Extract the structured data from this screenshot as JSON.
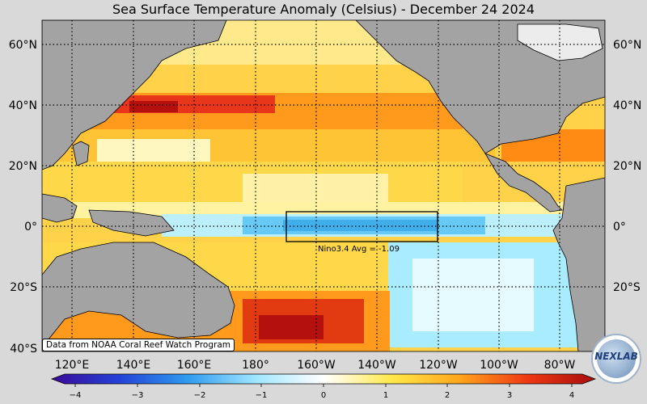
{
  "title": "Sea Surface Temperature Anomaly (Celsius) - December 24 2024",
  "credit": "Data from NOAA Coral Reef Watch Program",
  "logo": {
    "text": "NEXLAB"
  },
  "lat_labels": [
    "60°N",
    "40°N",
    "20°N",
    "0°",
    "20°S",
    "40°S"
  ],
  "lon_labels": [
    "120°E",
    "140°E",
    "160°E",
    "180°",
    "160°W",
    "140°W",
    "120°W",
    "100°W",
    "80°W"
  ],
  "nino_box": {
    "label": "Nino3.4 Avg = -1.09",
    "region": "5°S–5°N, 170°W–120°W",
    "value": -1.09
  },
  "colorbar": {
    "ticks": [
      "−4",
      "−3",
      "−2",
      "−1",
      "0",
      "1",
      "2",
      "3",
      "4"
    ],
    "range": [
      -4,
      4
    ],
    "colors": {
      "-4": "#3a0a99",
      "-3": "#2442d8",
      "-2": "#2f9bf0",
      "-1": "#9fe6ff",
      "0": "#ffffff",
      "1": "#ffe94a",
      "2": "#ffa51c",
      "3": "#ee3812",
      "4": "#a80d0d"
    }
  },
  "colors": {
    "land": "#a3a3a3",
    "background": "#d9d9d9",
    "grid": "#000000"
  }
}
